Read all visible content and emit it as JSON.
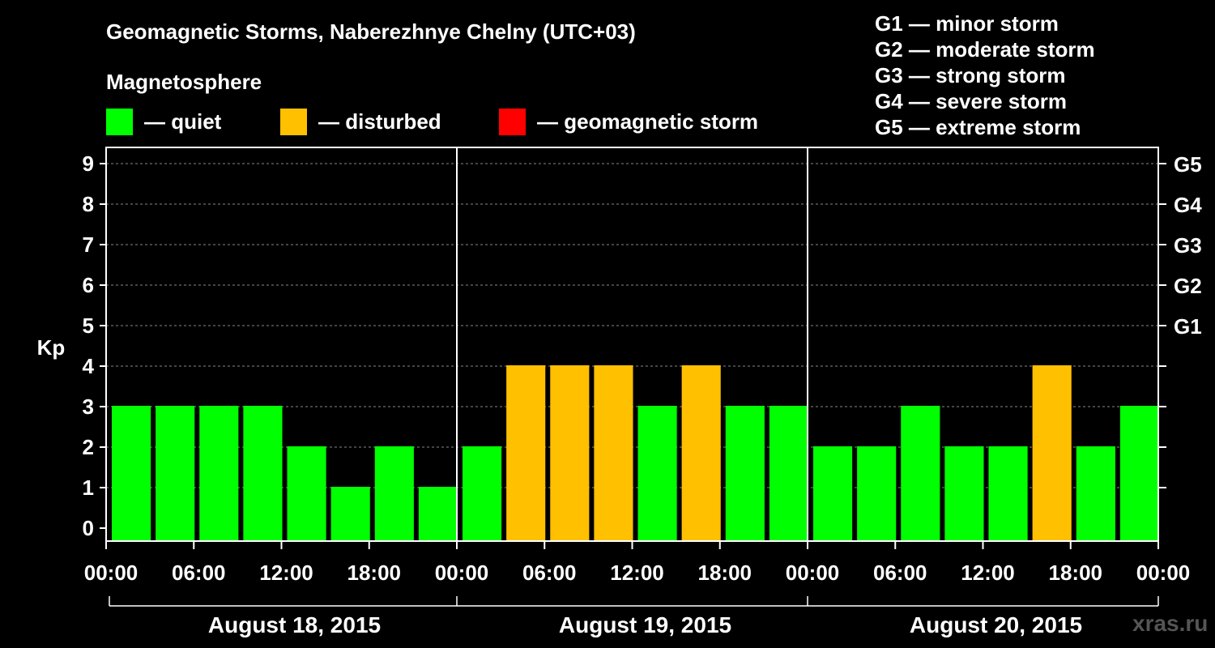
{
  "chart_data": {
    "type": "bar",
    "title": "Geomagnetic Storms, Naberezhnye Chelny (UTC+03)",
    "subtitle": "Magnetosphere",
    "ylabel": "Kp",
    "ylim": [
      0,
      9
    ],
    "legend": [
      {
        "label": "— quiet",
        "color": "#00ff00"
      },
      {
        "label": "— disturbed",
        "color": "#ffc000"
      },
      {
        "label": "— geomagnetic storm",
        "color": "#ff0000"
      }
    ],
    "storm_scale": [
      "G1 — minor storm",
      "G2 — moderate storm",
      "G3 — strong storm",
      "G4 — severe storm",
      "G5 — extreme storm"
    ],
    "right_axis_labels": [
      {
        "label": "G1",
        "kp": 5
      },
      {
        "label": "G2",
        "kp": 6
      },
      {
        "label": "G3",
        "kp": 7
      },
      {
        "label": "G4",
        "kp": 8
      },
      {
        "label": "G5",
        "kp": 9
      }
    ],
    "y_ticks": [
      0,
      1,
      2,
      3,
      4,
      5,
      6,
      7,
      8,
      9
    ],
    "x_tick_labels": [
      "00:00",
      "06:00",
      "12:00",
      "18:00",
      "00:00",
      "06:00",
      "12:00",
      "18:00",
      "00:00",
      "06:00",
      "12:00",
      "18:00",
      "00:00"
    ],
    "days": [
      "August 18, 2015",
      "August 19, 2015",
      "August 20, 2015"
    ],
    "interval_hours": 3,
    "values": [
      3,
      3,
      3,
      3,
      2,
      1,
      2,
      1,
      2,
      4,
      4,
      4,
      3,
      4,
      3,
      3,
      2,
      2,
      3,
      2,
      2,
      4,
      2,
      3
    ],
    "colors": {
      "quiet": "#00ff00",
      "disturbed": "#ffc000",
      "storm": "#ff0000",
      "grid": "#888888",
      "axis": "#ffffff"
    }
  },
  "watermark": "xras.ru"
}
